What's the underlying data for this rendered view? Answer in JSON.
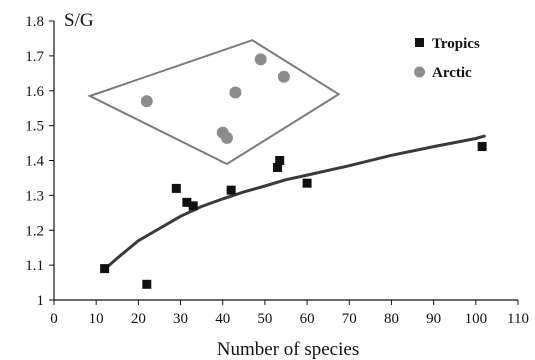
{
  "chart_data": {
    "type": "scatter",
    "title": "",
    "xlabel": "Number of species",
    "ylabel": "S/G",
    "xlim": [
      0,
      110
    ],
    "ylim": [
      1,
      1.8
    ],
    "x_ticks": [
      0,
      10,
      20,
      30,
      40,
      50,
      60,
      70,
      80,
      90,
      100,
      110
    ],
    "y_ticks": [
      1,
      1.1,
      1.2,
      1.3,
      1.4,
      1.5,
      1.6,
      1.7,
      1.8
    ],
    "y_tick_labels": [
      "1",
      "1.1",
      "1.2",
      "1.3",
      "1.4",
      "1.5",
      "1.6",
      "1.7",
      "1.8"
    ],
    "grid": false,
    "legend_position": "top-right",
    "series": [
      {
        "name": "Tropics",
        "marker": "square",
        "color": "#111111",
        "points": [
          {
            "x": 12,
            "y": 1.09
          },
          {
            "x": 22,
            "y": 1.045
          },
          {
            "x": 29,
            "y": 1.32
          },
          {
            "x": 31.5,
            "y": 1.28
          },
          {
            "x": 33,
            "y": 1.27
          },
          {
            "x": 42,
            "y": 1.315
          },
          {
            "x": 53,
            "y": 1.38
          },
          {
            "x": 53.5,
            "y": 1.4
          },
          {
            "x": 60,
            "y": 1.335
          },
          {
            "x": 101.5,
            "y": 1.44
          }
        ]
      },
      {
        "name": "Arctic",
        "marker": "circle",
        "color": "#8c8c8c",
        "points": [
          {
            "x": 22,
            "y": 1.57
          },
          {
            "x": 40,
            "y": 1.48
          },
          {
            "x": 41,
            "y": 1.465
          },
          {
            "x": 43,
            "y": 1.595
          },
          {
            "x": 49,
            "y": 1.69
          },
          {
            "x": 54.5,
            "y": 1.64
          }
        ]
      }
    ],
    "fit_curve": {
      "color": "#3a3a3a",
      "points": [
        {
          "x": 12,
          "y": 1.088
        },
        {
          "x": 15,
          "y": 1.12
        },
        {
          "x": 20,
          "y": 1.17
        },
        {
          "x": 25,
          "y": 1.205
        },
        {
          "x": 30,
          "y": 1.24
        },
        {
          "x": 35,
          "y": 1.268
        },
        {
          "x": 40,
          "y": 1.29
        },
        {
          "x": 45,
          "y": 1.31
        },
        {
          "x": 50,
          "y": 1.327
        },
        {
          "x": 55,
          "y": 1.345
        },
        {
          "x": 60,
          "y": 1.358
        },
        {
          "x": 70,
          "y": 1.385
        },
        {
          "x": 80,
          "y": 1.415
        },
        {
          "x": 90,
          "y": 1.44
        },
        {
          "x": 100,
          "y": 1.463
        },
        {
          "x": 102,
          "y": 1.47
        }
      ]
    },
    "hull_outline": {
      "color": "#7a7a7a",
      "points": [
        {
          "x": 8.5,
          "y": 1.585
        },
        {
          "x": 47,
          "y": 1.745
        },
        {
          "x": 67.5,
          "y": 1.59
        },
        {
          "x": 41,
          "y": 1.39
        }
      ]
    }
  }
}
